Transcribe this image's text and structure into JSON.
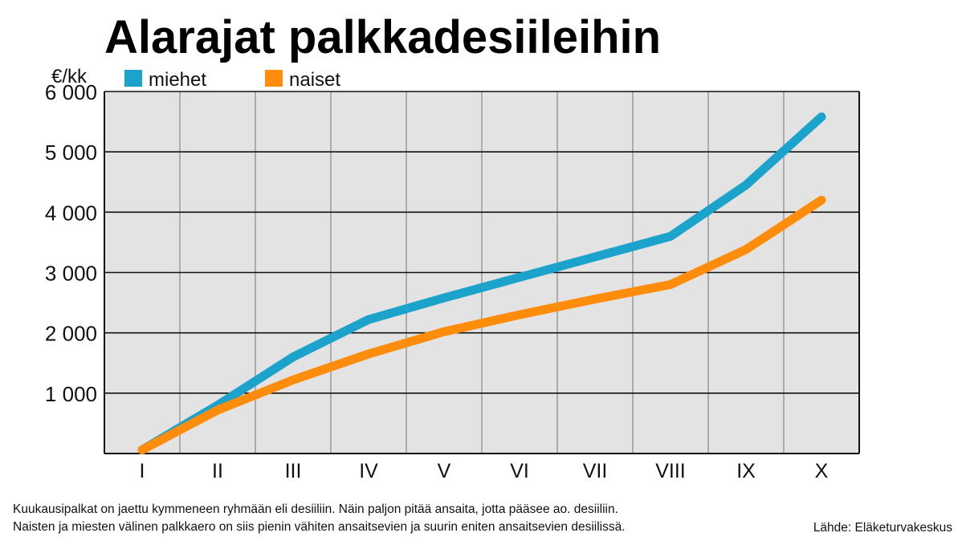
{
  "chart_data": {
    "type": "line",
    "title": "Alarajat palkkadesiileihin",
    "ylabel": "€/kk",
    "categories": [
      "I",
      "II",
      "III",
      "IV",
      "V",
      "VI",
      "VII",
      "VIII",
      "IX",
      "X"
    ],
    "ylim": [
      0,
      6000
    ],
    "yticks": [
      1000,
      2000,
      3000,
      4000,
      5000,
      6000
    ],
    "ytick_labels": [
      "1 000",
      "2 000",
      "3 000",
      "4 000",
      "5 000",
      "6 000"
    ],
    "grid": true,
    "legend_position": "top-left",
    "series": [
      {
        "name": "miehet",
        "color": "#1ba3cc",
        "values": [
          60,
          800,
          1600,
          2220,
          2580,
          2920,
          3260,
          3600,
          4450,
          5580
        ]
      },
      {
        "name": "naiset",
        "color": "#ff8c0a",
        "values": [
          60,
          720,
          1220,
          1650,
          2020,
          2300,
          2560,
          2800,
          3380,
          4200
        ]
      }
    ]
  },
  "caption": {
    "line1": "Kuukausipalkat on jaettu kymmeneen ryhmään eli desiiliin. Näin paljon pitää ansaita, jotta pääsee ao. desiiliin.",
    "line2": "Naisten ja miesten välinen palkkaero on siis pienin vähiten ansaitsevien ja suurin eniten ansaitsevien desiilissä."
  },
  "source": "Lähde: Eläketurvakeskus"
}
